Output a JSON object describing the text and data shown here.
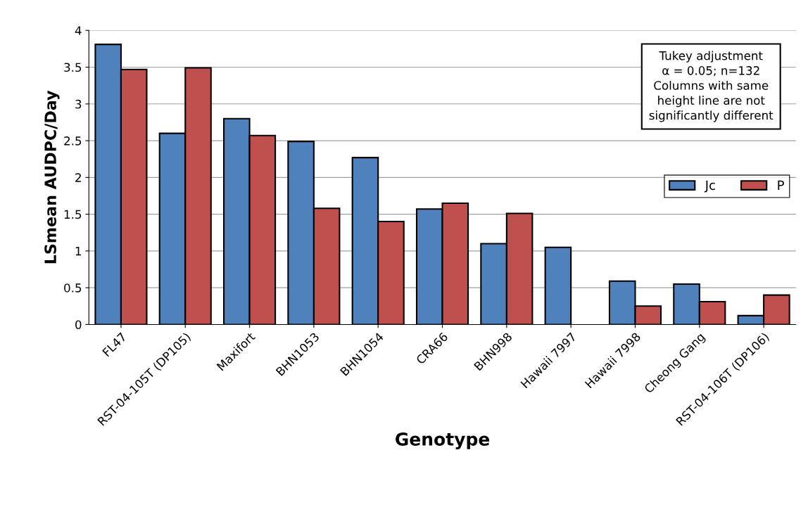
{
  "chart_data": {
    "type": "bar",
    "xlabel": "Genotype",
    "ylabel": "LSmean AUDPC/Day",
    "categories": [
      "FL47",
      "RST-04-105T (DP105)",
      "Maxifort",
      "BHN1053",
      "BHN1054",
      "CRA66",
      "BHN998",
      "Hawaii 7997",
      "Hawaii 7998",
      "Cheong Gang",
      "RST-04-106T (DP106)"
    ],
    "series": [
      {
        "name": "Jc",
        "color": "#4f81bd",
        "values": [
          3.81,
          2.6,
          2.8,
          2.49,
          2.27,
          1.57,
          1.1,
          1.05,
          0.59,
          0.55,
          0.12
        ]
      },
      {
        "name": "P",
        "color": "#c0504d",
        "values": [
          3.47,
          3.49,
          2.57,
          1.58,
          1.4,
          1.65,
          1.51,
          null,
          0.25,
          0.31,
          0.4
        ]
      }
    ],
    "ylim": [
      0,
      4
    ],
    "yticks": [
      0,
      0.5,
      1,
      1.5,
      2,
      2.5,
      3,
      3.5,
      4
    ],
    "grid": "y",
    "legend": "right",
    "annotations": [
      "Tukey adjustment\nα = 0.05; n=132\nColumns with same\nheight line are not\nsignificantly different"
    ]
  }
}
